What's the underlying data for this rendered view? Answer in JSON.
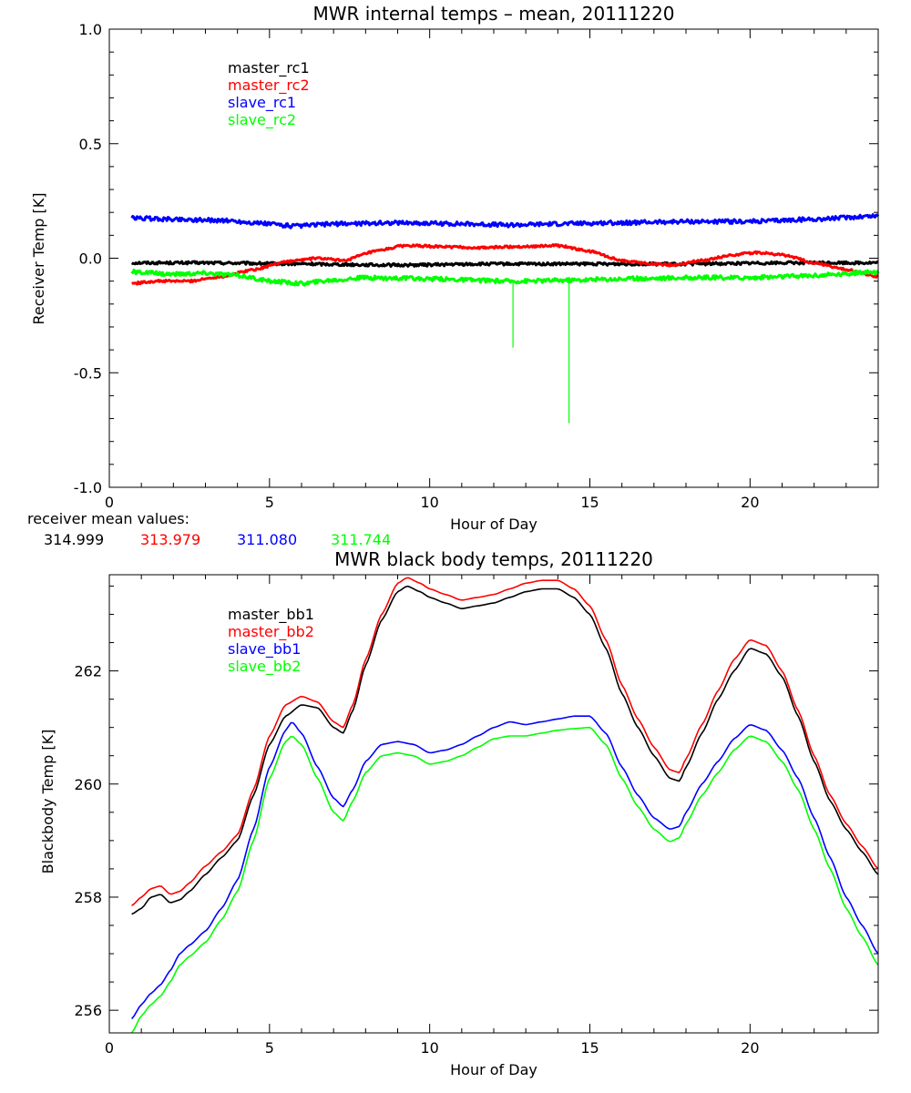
{
  "chart_data": [
    {
      "type": "line",
      "title": "MWR internal temps – mean, 20111220",
      "xlabel": "Hour of Day",
      "ylabel": "Receiver Temp [K]",
      "xlim": [
        0,
        24
      ],
      "ylim": [
        -1.0,
        1.0
      ],
      "x_ticks": [
        0,
        5,
        10,
        15,
        20
      ],
      "y_ticks": [
        1.0,
        0.5,
        0.0,
        -0.5,
        -1.0
      ],
      "y_tick_labels": [
        "1.0",
        "0.5",
        "0.0",
        "-0.5",
        "-1.0"
      ],
      "legend_position": "top-left",
      "grid": false,
      "series": [
        {
          "name": "master_rc1",
          "color": "#000000",
          "noise": 0.006,
          "x": [
            0.7,
            3,
            6,
            9,
            12,
            15,
            18,
            21,
            24
          ],
          "y": [
            -0.02,
            -0.02,
            -0.025,
            -0.03,
            -0.025,
            -0.025,
            -0.025,
            -0.02,
            -0.02
          ]
        },
        {
          "name": "master_rc2",
          "color": "#ff0000",
          "noise": 0.005,
          "x": [
            0.7,
            1.5,
            2.5,
            3.5,
            4.5,
            5.5,
            6.5,
            7.3,
            8.3,
            9.2,
            10.5,
            11.5,
            12.5,
            14,
            15,
            16,
            17,
            17.6,
            18.5,
            19.5,
            20.2,
            21,
            22,
            23,
            24
          ],
          "y": [
            -0.11,
            -0.1,
            -0.1,
            -0.08,
            -0.05,
            -0.015,
            0.0,
            -0.01,
            0.03,
            0.055,
            0.05,
            0.045,
            0.05,
            0.055,
            0.03,
            -0.01,
            -0.025,
            -0.03,
            -0.01,
            0.015,
            0.025,
            0.015,
            -0.02,
            -0.05,
            -0.08
          ]
        },
        {
          "name": "slave_rc1",
          "color": "#0000ff",
          "noise": 0.009,
          "x": [
            0.7,
            2,
            3.5,
            5,
            5.8,
            7,
            9,
            11,
            12.5,
            14,
            16,
            18,
            20,
            22,
            24
          ],
          "y": [
            0.175,
            0.17,
            0.165,
            0.15,
            0.14,
            0.15,
            0.155,
            0.15,
            0.145,
            0.15,
            0.155,
            0.16,
            0.16,
            0.17,
            0.185
          ]
        },
        {
          "name": "slave_rc2",
          "color": "#00ff00",
          "noise": 0.009,
          "x": [
            0.7,
            2,
            3,
            4,
            5,
            6,
            7,
            8,
            10,
            12.5,
            14.5,
            16,
            18,
            20,
            22,
            24
          ],
          "y": [
            -0.06,
            -0.07,
            -0.065,
            -0.075,
            -0.1,
            -0.11,
            -0.095,
            -0.085,
            -0.09,
            -0.1,
            -0.095,
            -0.09,
            -0.085,
            -0.085,
            -0.075,
            -0.06
          ],
          "spikes": [
            {
              "x": 12.6,
              "y": -0.39
            },
            {
              "x": 14.35,
              "y": -0.72
            }
          ]
        }
      ],
      "mean_values_label": "receiver mean values:",
      "mean_values": [
        {
          "text": "314.999",
          "color": "#000000"
        },
        {
          "text": "313.979",
          "color": "#ff0000"
        },
        {
          "text": "311.080",
          "color": "#0000ff"
        },
        {
          "text": "311.744",
          "color": "#00ff00"
        }
      ]
    },
    {
      "type": "line",
      "title": "MWR black body temps, 20111220",
      "xlabel": "Hour of Day",
      "ylabel": "Blackbody Temp [K]",
      "xlim": [
        0,
        24
      ],
      "ylim": [
        255.6,
        263.7
      ],
      "x_ticks": [
        0,
        5,
        10,
        15,
        20
      ],
      "y_ticks": [
        256,
        258,
        260,
        262
      ],
      "y_tick_labels": [
        "256",
        "258",
        "260",
        "262"
      ],
      "legend_position": "top-left",
      "grid": false,
      "series": [
        {
          "name": "master_bb1",
          "color": "#000000",
          "x": [
            0.7,
            1.0,
            1.3,
            1.6,
            1.9,
            2.2,
            2.5,
            3.0,
            3.5,
            4.0,
            4.5,
            5.0,
            5.5,
            6.0,
            6.5,
            7.0,
            7.3,
            7.6,
            8.0,
            8.5,
            9.0,
            9.3,
            9.7,
            10.0,
            10.5,
            11.0,
            11.5,
            12.0,
            12.5,
            13.0,
            13.5,
            14.0,
            14.5,
            15.0,
            15.5,
            16.0,
            16.5,
            17.0,
            17.5,
            17.8,
            18.0,
            18.5,
            19.0,
            19.5,
            20.0,
            20.5,
            21.0,
            21.5,
            22.0,
            22.5,
            23.0,
            23.5,
            24.0
          ],
          "y": [
            257.7,
            257.8,
            258.0,
            258.05,
            257.9,
            257.95,
            258.1,
            258.4,
            258.7,
            259.0,
            259.8,
            260.7,
            261.2,
            261.4,
            261.35,
            261.0,
            260.9,
            261.3,
            262.1,
            262.9,
            263.4,
            263.5,
            263.4,
            263.3,
            263.2,
            263.1,
            263.15,
            263.2,
            263.3,
            263.4,
            263.45,
            263.45,
            263.3,
            263.0,
            262.4,
            261.6,
            261.0,
            260.5,
            260.1,
            260.05,
            260.3,
            260.9,
            261.5,
            262.0,
            262.4,
            262.3,
            261.9,
            261.2,
            260.4,
            259.7,
            259.2,
            258.8,
            258.4
          ]
        },
        {
          "name": "master_bb2",
          "color": "#ff0000",
          "x": [
            0.7,
            1.0,
            1.3,
            1.6,
            1.9,
            2.2,
            2.5,
            3.0,
            3.5,
            4.0,
            4.5,
            5.0,
            5.5,
            6.0,
            6.5,
            7.0,
            7.3,
            7.6,
            8.0,
            8.5,
            9.0,
            9.3,
            9.7,
            10.0,
            10.5,
            11.0,
            11.5,
            12.0,
            12.5,
            13.0,
            13.5,
            14.0,
            14.5,
            15.0,
            15.5,
            16.0,
            16.5,
            17.0,
            17.5,
            17.8,
            18.0,
            18.5,
            19.0,
            19.5,
            20.0,
            20.5,
            21.0,
            21.5,
            22.0,
            22.5,
            23.0,
            23.5,
            24.0
          ],
          "y": [
            257.85,
            258.0,
            258.15,
            258.2,
            258.05,
            258.1,
            258.25,
            258.55,
            258.8,
            259.1,
            259.9,
            260.85,
            261.4,
            261.55,
            261.45,
            261.1,
            261.0,
            261.4,
            262.2,
            263.0,
            263.55,
            263.65,
            263.55,
            263.45,
            263.35,
            263.25,
            263.3,
            263.35,
            263.45,
            263.55,
            263.6,
            263.6,
            263.45,
            263.15,
            262.55,
            261.75,
            261.15,
            260.65,
            260.25,
            260.2,
            260.45,
            261.05,
            261.65,
            262.2,
            262.55,
            262.45,
            262.0,
            261.3,
            260.5,
            259.8,
            259.3,
            258.9,
            258.5
          ]
        },
        {
          "name": "slave_bb1",
          "color": "#0000ff",
          "x": [
            0.7,
            1.0,
            1.3,
            1.6,
            1.9,
            2.2,
            2.5,
            3.0,
            3.5,
            4.0,
            4.5,
            5.0,
            5.5,
            5.7,
            6.0,
            6.5,
            7.0,
            7.3,
            7.6,
            8.0,
            8.5,
            9.0,
            9.5,
            10.0,
            10.5,
            11.0,
            11.5,
            12.0,
            12.5,
            13.0,
            13.5,
            14.0,
            14.5,
            15.0,
            15.5,
            16.0,
            16.5,
            17.0,
            17.5,
            17.8,
            18.0,
            18.5,
            19.0,
            19.5,
            20.0,
            20.5,
            21.0,
            21.5,
            22.0,
            22.5,
            23.0,
            23.5,
            24.0
          ],
          "y": [
            255.85,
            256.1,
            256.3,
            256.45,
            256.7,
            257.0,
            257.15,
            257.4,
            257.8,
            258.3,
            259.2,
            260.3,
            260.95,
            261.1,
            260.9,
            260.3,
            259.75,
            259.6,
            259.9,
            260.4,
            260.7,
            260.75,
            260.7,
            260.55,
            260.6,
            260.7,
            260.85,
            261.0,
            261.1,
            261.05,
            261.1,
            261.15,
            261.2,
            261.2,
            260.9,
            260.3,
            259.8,
            259.4,
            259.2,
            259.25,
            259.5,
            260.0,
            260.4,
            260.8,
            261.05,
            260.95,
            260.6,
            260.1,
            259.4,
            258.7,
            258.0,
            257.5,
            257.0
          ]
        },
        {
          "name": "slave_bb2",
          "color": "#00ff00",
          "x": [
            0.7,
            1.0,
            1.3,
            1.6,
            1.9,
            2.2,
            2.5,
            3.0,
            3.5,
            4.0,
            4.5,
            5.0,
            5.5,
            5.7,
            6.0,
            6.5,
            7.0,
            7.3,
            7.6,
            8.0,
            8.5,
            9.0,
            9.5,
            10.0,
            10.5,
            11.0,
            11.5,
            12.0,
            12.5,
            13.0,
            13.5,
            14.0,
            14.5,
            15.0,
            15.5,
            16.0,
            16.5,
            17.0,
            17.5,
            17.8,
            18.0,
            18.5,
            19.0,
            19.5,
            20.0,
            20.5,
            21.0,
            21.5,
            22.0,
            22.5,
            23.0,
            23.5,
            24.0
          ],
          "y": [
            255.6,
            255.9,
            256.1,
            256.25,
            256.5,
            256.8,
            256.95,
            257.2,
            257.6,
            258.1,
            259.0,
            260.1,
            260.75,
            260.85,
            260.7,
            260.1,
            259.5,
            259.35,
            259.7,
            260.2,
            260.5,
            260.55,
            260.5,
            260.35,
            260.4,
            260.5,
            260.65,
            260.8,
            260.85,
            260.85,
            260.9,
            260.95,
            260.98,
            261.0,
            260.7,
            260.1,
            259.6,
            259.2,
            258.98,
            259.05,
            259.3,
            259.8,
            260.2,
            260.6,
            260.85,
            260.75,
            260.4,
            259.9,
            259.2,
            258.5,
            257.8,
            257.3,
            256.8
          ]
        }
      ]
    }
  ]
}
